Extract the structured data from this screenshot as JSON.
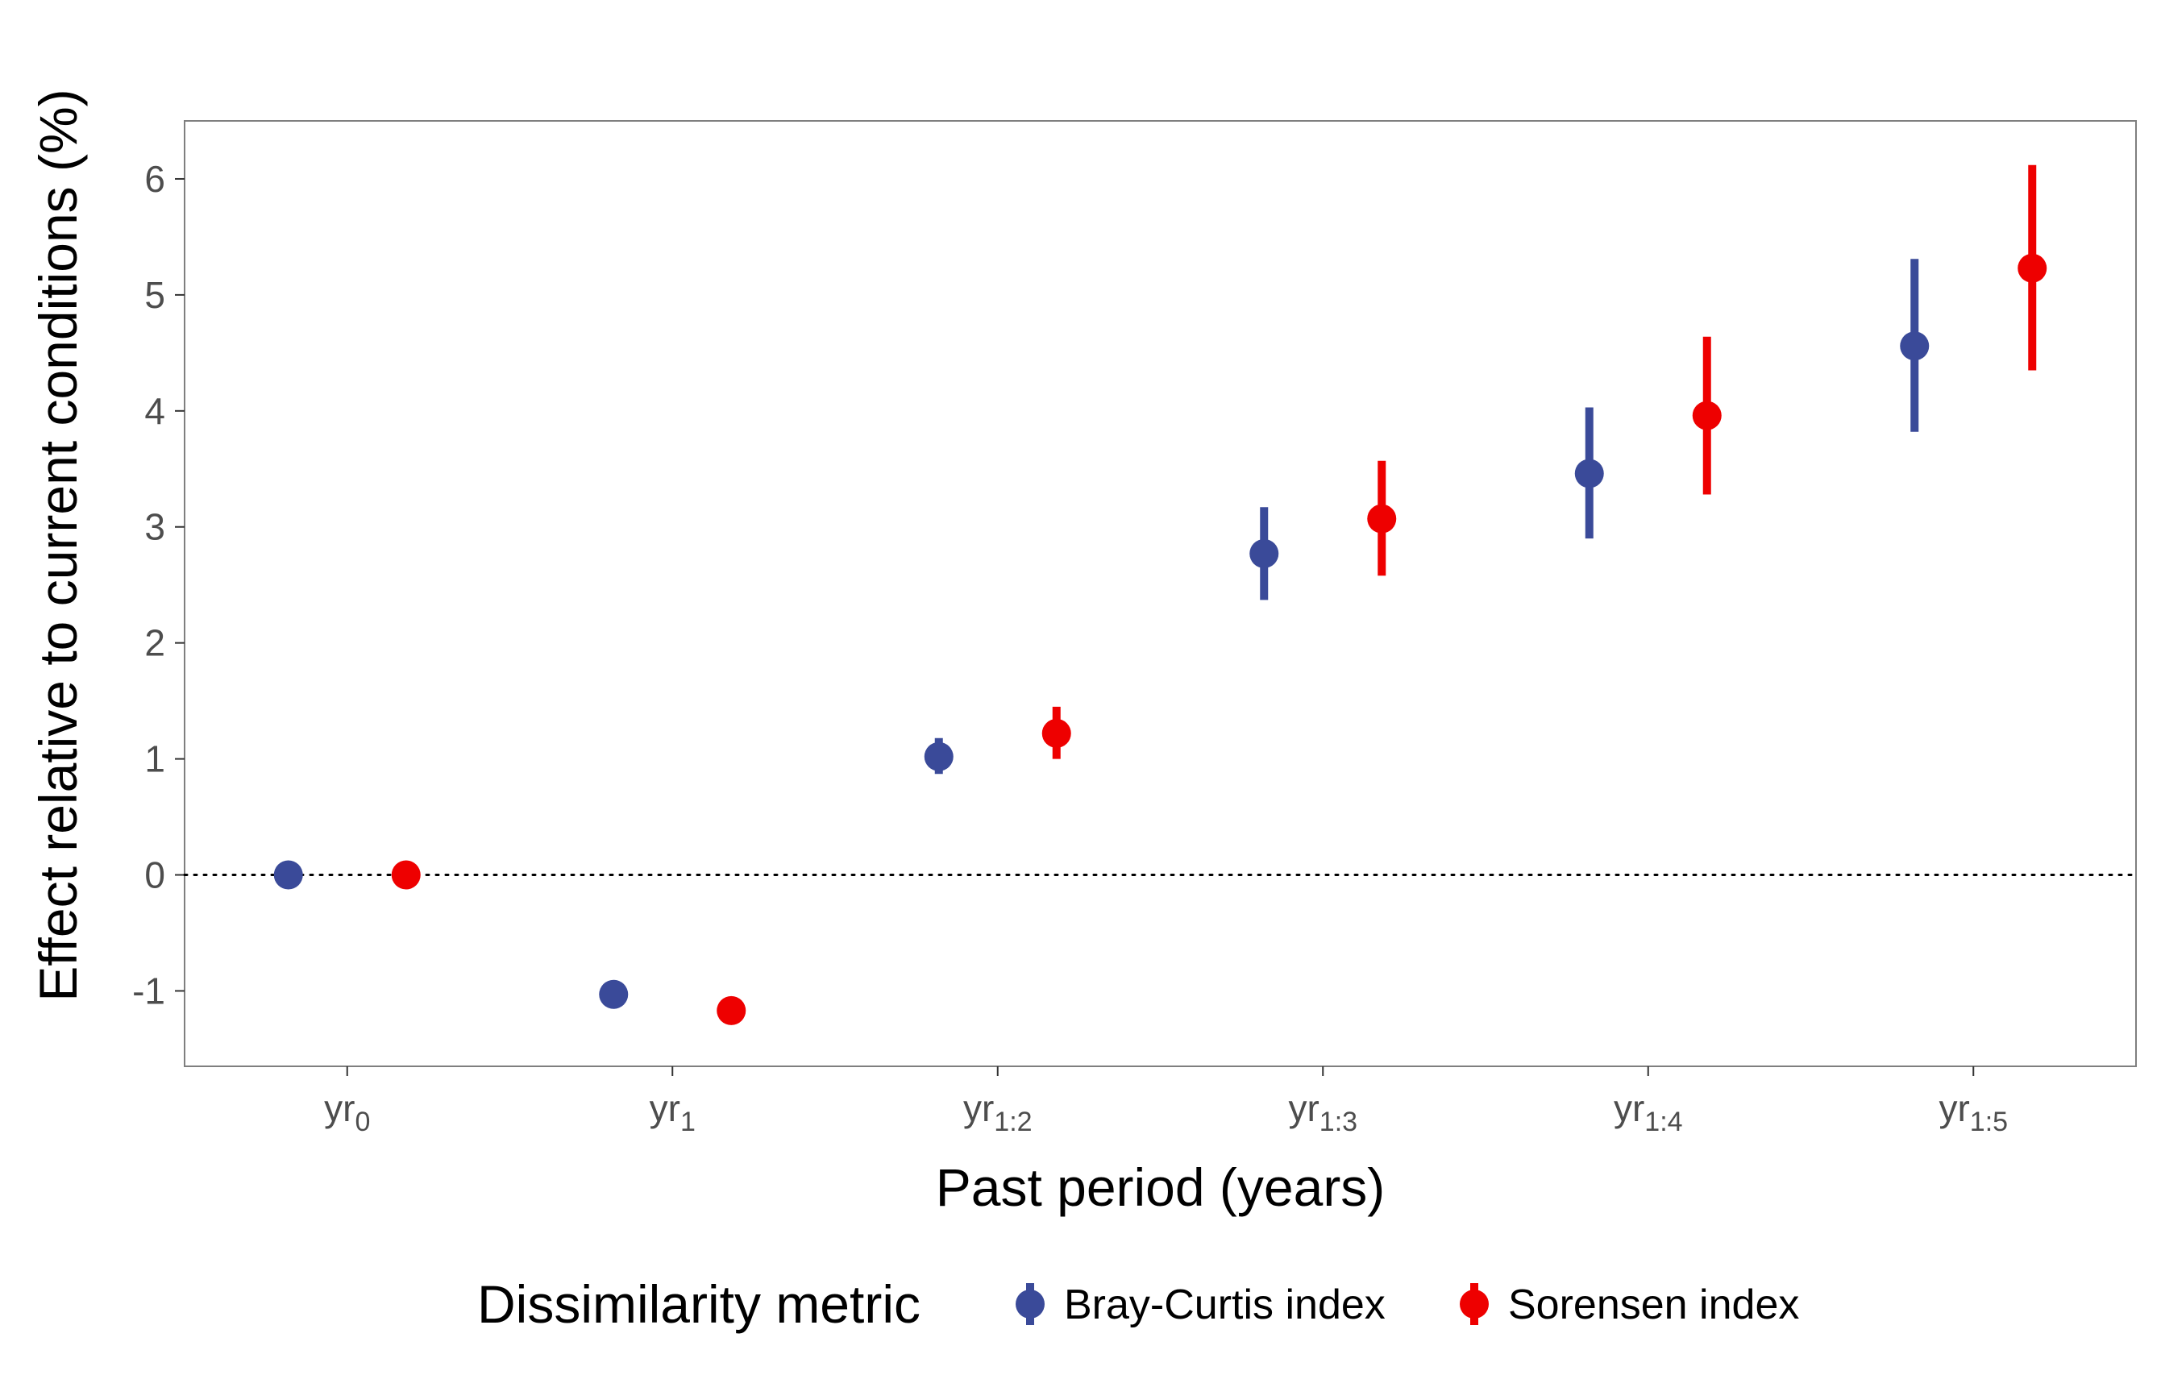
{
  "chart_data": {
    "type": "scatter",
    "subtype": "point-errorbar",
    "title": "",
    "xlabel": "Past period (years)",
    "ylabel": "Effect relative to current conditions (%)",
    "ylim": [
      -1.65,
      6.5
    ],
    "yticks": [
      -1,
      0,
      1,
      2,
      3,
      4,
      5,
      6
    ],
    "categories": [
      {
        "base": "yr",
        "sub": "0"
      },
      {
        "base": "yr",
        "sub": "1"
      },
      {
        "base": "yr",
        "sub": "1:2"
      },
      {
        "base": "yr",
        "sub": "1:3"
      },
      {
        "base": "yr",
        "sub": "1:4"
      },
      {
        "base": "yr",
        "sub": "1:5"
      }
    ],
    "reference_line": {
      "y": 0,
      "style": "dotted"
    },
    "grid": false,
    "legend": {
      "title": "Dissimilarity metric",
      "position": "bottom"
    },
    "series": [
      {
        "name": "Bray-Curtis index",
        "color": "#3a4a99",
        "values": [
          0,
          -1.03,
          1.02,
          2.77,
          3.46,
          4.56
        ],
        "lower": [
          0,
          -1.12,
          0.87,
          2.37,
          2.9,
          3.82
        ],
        "upper": [
          0,
          -0.93,
          1.18,
          3.17,
          4.03,
          5.31
        ]
      },
      {
        "name": "Sorensen index",
        "color": "#ee0000",
        "values": [
          0,
          -1.17,
          1.22,
          3.07,
          3.96,
          5.23
        ],
        "lower": [
          0,
          -1.22,
          1.0,
          2.58,
          3.28,
          4.35
        ],
        "upper": [
          0,
          -1.1,
          1.45,
          3.57,
          4.64,
          6.12
        ]
      }
    ]
  }
}
